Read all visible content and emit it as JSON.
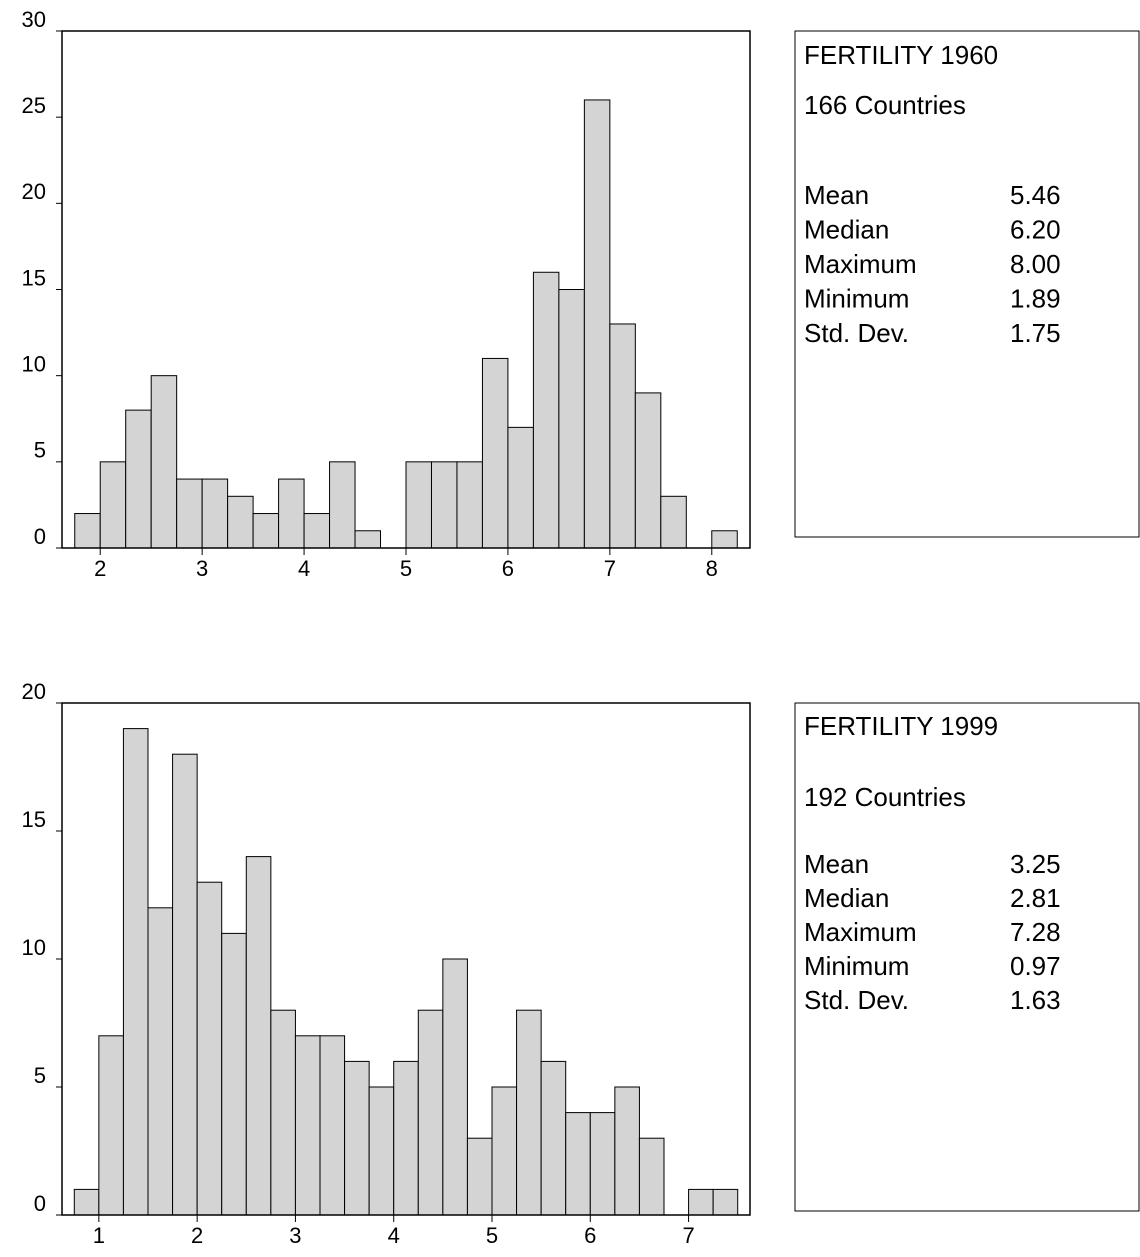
{
  "chart_data": [
    {
      "type": "histogram",
      "title": "FERTILITY 1960",
      "subtitle": "166 Countries",
      "bins": [
        1.75,
        2.0,
        2.25,
        2.5,
        2.75,
        3.0,
        3.25,
        3.5,
        3.75,
        4.0,
        4.25,
        4.5,
        4.75,
        5.0,
        5.25,
        5.5,
        5.75,
        6.0,
        6.25,
        6.5,
        6.75,
        7.0,
        7.25,
        7.5,
        7.75,
        8.0,
        8.25
      ],
      "values": [
        2,
        5,
        8,
        10,
        4,
        4,
        3,
        2,
        4,
        2,
        5,
        1,
        0,
        5,
        5,
        5,
        11,
        7,
        16,
        15,
        26,
        13,
        9,
        3,
        0,
        1
      ],
      "color": "#d4d4d4",
      "xlim": [
        1.625,
        8.375
      ],
      "xticks": [
        2,
        3,
        4,
        5,
        6,
        7,
        8
      ],
      "ylim": [
        0,
        30
      ],
      "yticks": [
        0,
        5,
        10,
        15,
        20,
        25,
        30
      ],
      "stats": [
        [
          "Mean",
          "5.46"
        ],
        [
          "Median",
          "6.20"
        ],
        [
          "Maximum",
          "8.00"
        ],
        [
          "Minimum",
          "1.89"
        ],
        [
          "Std. Dev.",
          "1.75"
        ]
      ]
    },
    {
      "type": "histogram",
      "title": "FERTILITY 1999",
      "subtitle": "192 Countries",
      "bins": [
        0.75,
        1.0,
        1.25,
        1.5,
        1.75,
        2.0,
        2.25,
        2.5,
        2.75,
        3.0,
        3.25,
        3.5,
        3.75,
        4.0,
        4.25,
        4.5,
        4.75,
        5.0,
        5.25,
        5.5,
        5.75,
        6.0,
        6.25,
        6.5,
        6.75,
        7.0,
        7.25,
        7.5
      ],
      "values": [
        1,
        7,
        19,
        12,
        18,
        13,
        11,
        14,
        8,
        7,
        7,
        6,
        5,
        6,
        8,
        10,
        3,
        5,
        8,
        6,
        4,
        4,
        5,
        3,
        0,
        1,
        1
      ],
      "color": "#d4d4d4",
      "xlim": [
        0.625,
        7.625
      ],
      "xticks": [
        1,
        2,
        3,
        4,
        5,
        6,
        7
      ],
      "ylim": [
        0,
        20
      ],
      "yticks": [
        0,
        5,
        10,
        15,
        20
      ],
      "stats": [
        [
          "Mean",
          "3.25"
        ],
        [
          "Median",
          "2.81"
        ],
        [
          "Maximum",
          "7.28"
        ],
        [
          "Minimum",
          "0.97"
        ],
        [
          "Std. Dev.",
          "1.63"
        ]
      ]
    }
  ]
}
